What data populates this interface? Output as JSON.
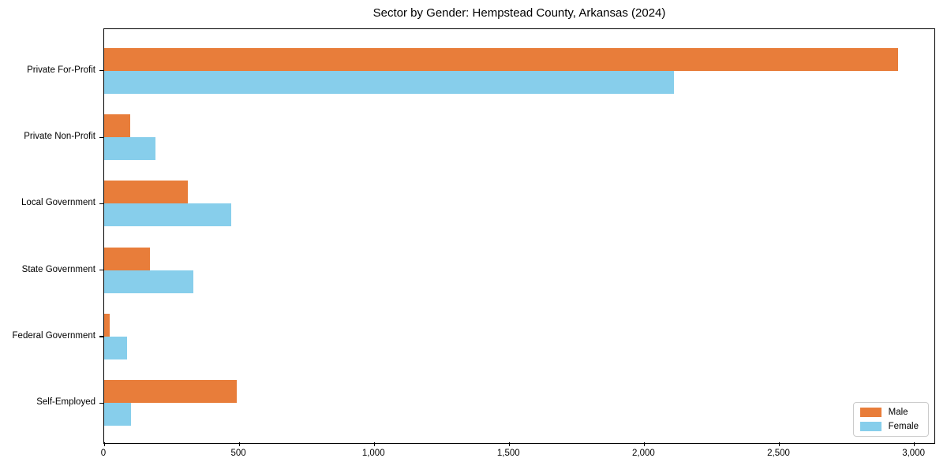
{
  "chart_data": {
    "type": "bar",
    "orientation": "horizontal",
    "title": "Sector by Gender: Hempstead County, Arkansas (2024)",
    "categories": [
      "Private For-Profit",
      "Private Non-Profit",
      "Local Government",
      "State Government",
      "Federal Government",
      "Self-Employed"
    ],
    "series": [
      {
        "name": "Male",
        "color": "#e87d3a",
        "values": [
          2940,
          95,
          310,
          170,
          20,
          490
        ]
      },
      {
        "name": "Female",
        "color": "#87ceeb",
        "values": [
          2110,
          190,
          470,
          330,
          85,
          100
        ]
      }
    ],
    "xlabel": "",
    "ylabel": "",
    "xlim": [
      0,
      3080
    ],
    "xticks": [
      0,
      500,
      1000,
      1500,
      2000,
      2500,
      3000
    ],
    "xtick_labels": [
      "0",
      "500",
      "1,000",
      "1,500",
      "2,000",
      "2,500",
      "3,000"
    ],
    "legend_position": "lower right",
    "grid": false,
    "colors": {
      "axis": "#000000",
      "background": "#ffffff",
      "legend_border": "#cccccc"
    }
  }
}
